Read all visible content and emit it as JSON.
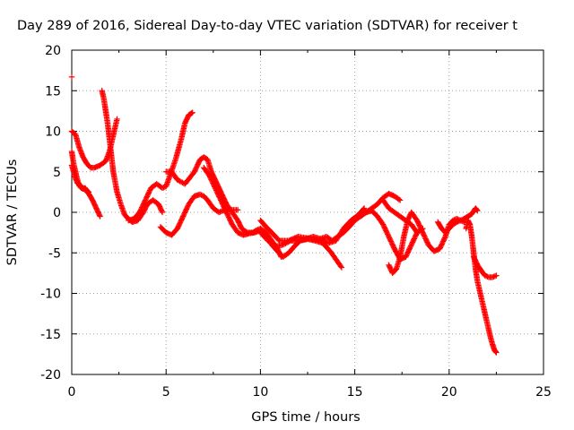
{
  "chart_data": {
    "type": "scatter",
    "title": "Day 289 of 2016, Sidereal Day-to-day VTEC variation (SDTVAR) for receiver t",
    "xlabel": "GPS time / hours",
    "ylabel": "SDTVAR / TECUs",
    "xlim": [
      0,
      25
    ],
    "ylim": [
      -20,
      20
    ],
    "xticks": [
      "0",
      "5",
      "10",
      "15",
      "20",
      "25"
    ],
    "yticks": [
      "20",
      "15",
      "10",
      "5",
      "0",
      "-5",
      "-10",
      "-15",
      "-20"
    ],
    "grid": true,
    "marker": "plus",
    "color": "#ff0000",
    "series": [
      {
        "x": [
          0.0
        ],
        "y": [
          16.7
        ]
      },
      {
        "x": [
          0.0,
          0.2,
          0.4,
          0.6,
          0.8,
          1.0,
          1.2,
          1.5,
          1.8,
          2.0,
          2.2,
          2.4
        ],
        "y": [
          10.0,
          9.6,
          8.0,
          6.8,
          6.0,
          5.5,
          5.5,
          5.8,
          6.3,
          7.5,
          9.5,
          11.5
        ]
      },
      {
        "x": [
          0.0,
          0.1,
          0.2,
          0.3,
          0.5,
          0.7,
          0.9,
          1.1,
          1.3,
          1.5
        ],
        "y": [
          5.8,
          5.0,
          4.2,
          3.6,
          3.2,
          2.8,
          2.3,
          1.5,
          0.5,
          -0.5
        ]
      },
      {
        "x": [
          0.0,
          0.1,
          0.2,
          0.3,
          0.4,
          0.5,
          0.6,
          0.7,
          0.8,
          0.9
        ],
        "y": [
          7.5,
          6.0,
          5.0,
          4.0,
          3.3,
          3.0,
          2.9,
          3.0,
          2.7,
          2.5
        ]
      },
      {
        "x": [
          1.6,
          1.7,
          1.8,
          1.9,
          2.0,
          2.1,
          2.2,
          2.4,
          2.6,
          2.8,
          3.0,
          3.2,
          3.5,
          3.8,
          4.0,
          4.3,
          4.6,
          4.8
        ],
        "y": [
          15.0,
          14.0,
          12.5,
          11.0,
          9.0,
          7.0,
          5.0,
          2.5,
          1.0,
          -0.3,
          -0.8,
          -1.2,
          -1.0,
          0.0,
          1.0,
          1.5,
          1.0,
          0.0
        ]
      },
      {
        "x": [
          3.0,
          3.3,
          3.6,
          3.9,
          4.2,
          4.5,
          4.8,
          5.0,
          5.2,
          5.5,
          5.8,
          6.0,
          6.2,
          6.4
        ],
        "y": [
          -1.0,
          -0.8,
          0.0,
          1.5,
          3.0,
          3.5,
          3.0,
          3.2,
          4.5,
          6.5,
          9.0,
          11.0,
          12.0,
          12.3
        ]
      },
      {
        "x": [
          4.7,
          5.0,
          5.3,
          5.6,
          5.9,
          6.2,
          6.5,
          6.8,
          7.0,
          7.2,
          7.5,
          7.8,
          8.0,
          8.2,
          8.5,
          8.8
        ],
        "y": [
          -1.8,
          -2.5,
          -2.8,
          -2.0,
          -0.5,
          1.0,
          2.0,
          2.2,
          2.0,
          1.5,
          0.5,
          0.0,
          0.2,
          0.3,
          0.3,
          0.3
        ]
      },
      {
        "x": [
          5.0,
          5.3,
          5.6,
          6.0,
          6.5,
          6.8,
          7.0,
          7.2,
          7.4,
          7.6,
          7.8,
          8.0,
          8.2,
          8.5,
          8.8,
          9.0,
          9.3,
          9.6,
          9.8,
          10.0,
          10.3,
          10.6,
          10.9,
          11.1
        ],
        "y": [
          5.0,
          5.0,
          4.0,
          3.5,
          5.0,
          6.5,
          6.8,
          6.5,
          5.0,
          4.0,
          3.0,
          2.0,
          1.0,
          0.0,
          -1.0,
          -2.0,
          -2.5,
          -2.5,
          -2.2,
          -2.0,
          -2.5,
          -3.5,
          -4.5,
          -5.5
        ]
      },
      {
        "x": [
          7.0,
          7.3,
          7.6,
          7.9,
          8.2,
          8.5,
          8.8,
          9.1,
          9.4,
          9.7,
          10.0,
          10.3,
          10.6,
          10.9,
          11.2,
          11.5,
          11.8,
          12.1,
          12.5,
          12.9,
          13.3,
          13.7,
          14.0,
          14.3
        ],
        "y": [
          5.5,
          4.5,
          3.0,
          1.5,
          0.0,
          -1.5,
          -2.5,
          -2.8,
          -2.6,
          -2.5,
          -2.2,
          -3.0,
          -4.0,
          -4.8,
          -5.5,
          -5.0,
          -4.2,
          -3.5,
          -3.3,
          -3.5,
          -3.8,
          -4.8,
          -5.8,
          -6.8
        ]
      },
      {
        "x": [
          10.0,
          10.3,
          10.6,
          11.0,
          11.5,
          12.0,
          12.5,
          13.0,
          13.5,
          13.8,
          14.1,
          14.4,
          14.7,
          15.0,
          15.3,
          15.6,
          15.9,
          16.2,
          16.5,
          16.8,
          17.1,
          17.4
        ],
        "y": [
          -1.0,
          -1.8,
          -2.5,
          -3.5,
          -3.5,
          -3.0,
          -3.2,
          -3.4,
          -3.0,
          -3.5,
          -3.0,
          -2.5,
          -1.8,
          -1.0,
          -0.5,
          0.0,
          0.5,
          1.0,
          1.8,
          2.3,
          2.0,
          1.5
        ]
      },
      {
        "x": [
          10.0,
          10.4,
          10.8,
          11.2,
          11.6,
          12.0,
          12.4,
          12.8,
          13.2,
          13.6,
          14.0,
          14.4,
          14.8,
          15.2,
          15.5
        ],
        "y": [
          -2.5,
          -3.5,
          -4.2,
          -4.0,
          -3.5,
          -3.5,
          -3.3,
          -3.0,
          -3.3,
          -3.8,
          -3.5,
          -2.0,
          -1.0,
          -0.3,
          0.5
        ]
      },
      {
        "x": [
          15.3,
          15.6,
          15.9,
          16.2,
          16.5,
          16.8,
          17.1,
          17.4,
          17.7,
          18.0,
          18.3,
          18.6
        ],
        "y": [
          -0.5,
          0.0,
          0.2,
          -0.5,
          -1.5,
          -3.0,
          -4.5,
          -5.8,
          -5.5,
          -4.0,
          -2.5,
          -2.0
        ]
      },
      {
        "x": [
          16.8,
          17.0,
          17.2,
          17.4,
          17.6,
          17.8,
          18.0,
          18.3,
          18.6,
          18.9,
          19.2,
          19.5,
          19.8,
          20.0,
          20.2,
          20.4,
          20.6,
          20.8
        ],
        "y": [
          -6.5,
          -7.5,
          -7.0,
          -5.5,
          -3.0,
          -1.0,
          0.0,
          -1.0,
          -2.5,
          -4.0,
          -4.8,
          -4.5,
          -3.0,
          -1.5,
          -1.0,
          -0.8,
          -1.0,
          -1.2
        ]
      },
      {
        "x": [
          16.5,
          16.8,
          17.1,
          17.4,
          17.7,
          18.0,
          18.3
        ],
        "y": [
          1.5,
          0.5,
          0.0,
          -0.5,
          -1.0,
          -1.5,
          -2.5
        ]
      },
      {
        "x": [
          19.4,
          19.6,
          19.8,
          20.0,
          20.2,
          20.4,
          20.6,
          20.8,
          21.0,
          21.2,
          21.4,
          21.5
        ],
        "y": [
          -1.2,
          -2.0,
          -2.5,
          -2.0,
          -1.5,
          -1.2,
          -1.0,
          -0.8,
          -0.5,
          -0.2,
          0.5,
          0.2
        ]
      },
      {
        "x": [
          20.9,
          21.0,
          21.1,
          21.2,
          21.3,
          21.4,
          21.5,
          21.6,
          21.7,
          21.8,
          21.9,
          22.0,
          22.1,
          22.2,
          22.3,
          22.4,
          22.5
        ],
        "y": [
          -2.0,
          -1.0,
          -1.5,
          -3.0,
          -5.0,
          -7.0,
          -8.5,
          -9.5,
          -10.5,
          -11.5,
          -12.5,
          -13.5,
          -14.5,
          -15.5,
          -16.3,
          -17.0,
          -17.3
        ]
      },
      {
        "x": [
          21.3,
          21.5,
          21.7,
          21.9,
          22.1,
          22.3,
          22.5
        ],
        "y": [
          -5.5,
          -6.5,
          -7.2,
          -7.8,
          -8.0,
          -8.0,
          -7.8
        ]
      }
    ]
  }
}
